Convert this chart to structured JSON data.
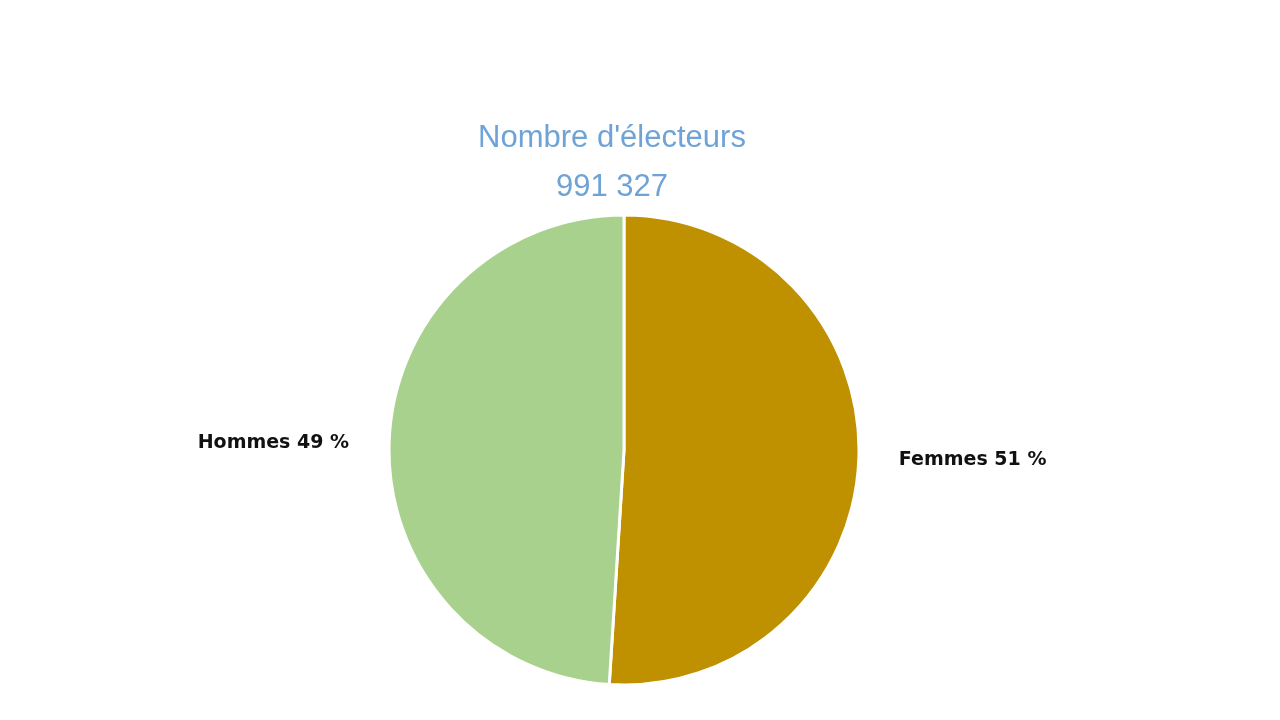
{
  "chart_data": {
    "type": "pie",
    "title": "Nombre d'électeurs",
    "subtitle": "991 327",
    "categories": [
      "Femmes",
      "Hommes"
    ],
    "values": [
      51,
      49
    ],
    "colors": [
      "#bf9000",
      "#a9d18e"
    ],
    "value_labels": [
      "51 %",
      "49 %"
    ],
    "legend": false
  }
}
